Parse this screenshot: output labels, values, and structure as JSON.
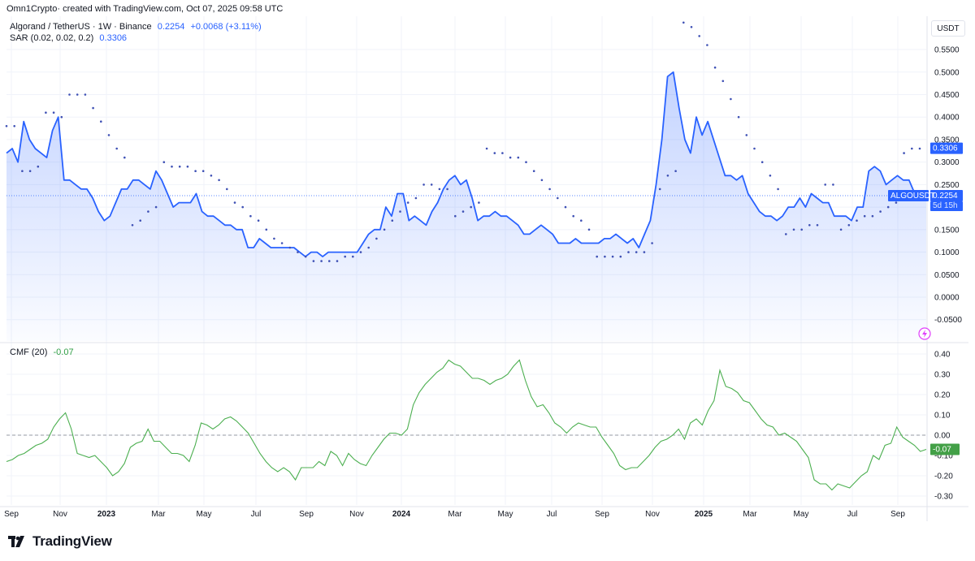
{
  "header": {
    "credit": "Omn1Crypto· created with TradingView.com, Oct 07, 2025 09:58 UTC"
  },
  "legend": {
    "symbol": "Algorand / TetherUS · 1W · Binance",
    "price": "0.2254",
    "change": "+0.0068 (+3.11%)",
    "sar_label": "SAR (0.02, 0.02, 0.2)",
    "sar_value": "0.3306",
    "cmf_label": "CMF (20)",
    "cmf_value": "-0.07"
  },
  "currency_box": "USDT",
  "price_labels": {
    "sar_tag": "0.3306",
    "symbol_tag": "ALGOUSDT",
    "price_tag": "0.2254",
    "countdown": "5d 15h",
    "cmf_tag": "-0.07"
  },
  "brand": {
    "logo_text": "TradingView"
  },
  "colors": {
    "price_line": "#2962ff",
    "sar_dots": "#3f51b5",
    "cmf_line": "#4caf50",
    "cmf_tag": "#43a047",
    "grid": "#f0f3fa"
  },
  "chart_data": [
    {
      "type": "area",
      "title": "Algorand / TetherUS · 1W · Binance",
      "ylabel": "USDT",
      "ylim": [
        -0.075,
        0.6
      ],
      "y_ticks": [
        "0.5500",
        "0.5000",
        "0.4500",
        "0.4000",
        "0.3500",
        "0.3000",
        "0.2500",
        "0.2000",
        "0.1500",
        "0.1000",
        "0.0500",
        "0.0000",
        "-0.0500"
      ],
      "x_ticks": [
        "Sep",
        "Nov",
        "2023",
        "Mar",
        "May",
        "Jul",
        "Sep",
        "Nov",
        "2024",
        "Mar",
        "May",
        "Jul",
        "Sep",
        "Nov",
        "2025",
        "Mar",
        "May",
        "Jul",
        "Sep"
      ],
      "series": [
        {
          "name": "ALGOUSDT",
          "values": [
            0.32,
            0.33,
            0.3,
            0.39,
            0.35,
            0.33,
            0.32,
            0.31,
            0.37,
            0.4,
            0.26,
            0.26,
            0.25,
            0.24,
            0.24,
            0.22,
            0.19,
            0.17,
            0.18,
            0.21,
            0.24,
            0.24,
            0.26,
            0.26,
            0.25,
            0.24,
            0.28,
            0.26,
            0.23,
            0.2,
            0.21,
            0.21,
            0.21,
            0.23,
            0.19,
            0.18,
            0.18,
            0.17,
            0.16,
            0.16,
            0.15,
            0.15,
            0.11,
            0.11,
            0.13,
            0.12,
            0.11,
            0.11,
            0.11,
            0.11,
            0.11,
            0.1,
            0.09,
            0.1,
            0.1,
            0.09,
            0.1,
            0.1,
            0.1,
            0.1,
            0.1,
            0.1,
            0.12,
            0.14,
            0.15,
            0.15,
            0.2,
            0.18,
            0.23,
            0.23,
            0.17,
            0.18,
            0.17,
            0.16,
            0.19,
            0.21,
            0.24,
            0.26,
            0.27,
            0.25,
            0.26,
            0.22,
            0.17,
            0.18,
            0.18,
            0.19,
            0.18,
            0.18,
            0.17,
            0.16,
            0.14,
            0.14,
            0.15,
            0.16,
            0.15,
            0.14,
            0.12,
            0.12,
            0.12,
            0.13,
            0.12,
            0.12,
            0.12,
            0.12,
            0.13,
            0.13,
            0.14,
            0.13,
            0.12,
            0.13,
            0.11,
            0.14,
            0.17,
            0.25,
            0.35,
            0.49,
            0.5,
            0.42,
            0.35,
            0.32,
            0.4,
            0.36,
            0.39,
            0.35,
            0.31,
            0.27,
            0.27,
            0.26,
            0.27,
            0.23,
            0.21,
            0.19,
            0.18,
            0.18,
            0.17,
            0.18,
            0.2,
            0.2,
            0.22,
            0.2,
            0.23,
            0.22,
            0.21,
            0.21,
            0.18,
            0.18,
            0.18,
            0.17,
            0.2,
            0.2,
            0.28,
            0.29,
            0.28,
            0.25,
            0.26,
            0.27,
            0.26,
            0.26,
            0.23,
            0.23,
            0.23
          ]
        },
        {
          "name": "SAR",
          "values": [
            0.38,
            0.38,
            0.28,
            0.28,
            0.29,
            0.41,
            0.41,
            0.4,
            0.45,
            0.45,
            0.45,
            0.42,
            0.39,
            0.36,
            0.33,
            0.31,
            0.16,
            0.17,
            0.19,
            0.2,
            0.3,
            0.29,
            0.29,
            0.29,
            0.28,
            0.28,
            0.27,
            0.26,
            0.24,
            0.21,
            0.2,
            0.18,
            0.17,
            0.15,
            0.13,
            0.12,
            0.11,
            0.1,
            0.09,
            0.08,
            0.08,
            0.08,
            0.08,
            0.09,
            0.09,
            0.1,
            0.11,
            0.13,
            0.15,
            0.17,
            0.19,
            0.21,
            0.22,
            0.25,
            0.25,
            0.24,
            0.24,
            0.18,
            0.19,
            0.2,
            0.21,
            0.33,
            0.32,
            0.32,
            0.31,
            0.31,
            0.3,
            0.28,
            0.26,
            0.24,
            0.22,
            0.2,
            0.18,
            0.17,
            0.15,
            0.09,
            0.09,
            0.09,
            0.09,
            0.1,
            0.1,
            0.1,
            0.12,
            0.24,
            0.27,
            0.28,
            0.61,
            0.6,
            0.58,
            0.56,
            0.51,
            0.48,
            0.44,
            0.4,
            0.36,
            0.33,
            0.3,
            0.27,
            0.24,
            0.14,
            0.15,
            0.15,
            0.16,
            0.16,
            0.25,
            0.25,
            0.15,
            0.16,
            0.17,
            0.18,
            0.18,
            0.19,
            0.2,
            0.21,
            0.32,
            0.33,
            0.33
          ]
        }
      ]
    },
    {
      "type": "line",
      "title": "CMF (20)",
      "ylim": [
        -0.35,
        0.43
      ],
      "y_ticks": [
        "0.40",
        "0.30",
        "0.20",
        "0.10",
        "0.00",
        "-0.10",
        "-0.20",
        "-0.30"
      ],
      "series": [
        {
          "name": "CMF (20)",
          "values": [
            -0.13,
            -0.12,
            -0.1,
            -0.09,
            -0.07,
            -0.05,
            -0.04,
            -0.02,
            0.04,
            0.08,
            0.11,
            0.03,
            -0.09,
            -0.1,
            -0.11,
            -0.1,
            -0.13,
            -0.16,
            -0.2,
            -0.18,
            -0.14,
            -0.06,
            -0.04,
            -0.03,
            0.03,
            -0.03,
            -0.03,
            -0.06,
            -0.09,
            -0.09,
            -0.1,
            -0.13,
            -0.05,
            0.06,
            0.05,
            0.03,
            0.05,
            0.08,
            0.09,
            0.07,
            0.04,
            0.01,
            -0.04,
            -0.09,
            -0.13,
            -0.16,
            -0.18,
            -0.16,
            -0.18,
            -0.22,
            -0.16,
            -0.16,
            -0.16,
            -0.13,
            -0.15,
            -0.08,
            -0.1,
            -0.15,
            -0.09,
            -0.12,
            -0.14,
            -0.15,
            -0.1,
            -0.06,
            -0.02,
            0.01,
            0.01,
            0.0,
            0.03,
            0.15,
            0.21,
            0.25,
            0.28,
            0.31,
            0.33,
            0.37,
            0.35,
            0.34,
            0.31,
            0.28,
            0.28,
            0.27,
            0.25,
            0.27,
            0.28,
            0.3,
            0.34,
            0.37,
            0.27,
            0.19,
            0.14,
            0.15,
            0.11,
            0.06,
            0.04,
            0.01,
            0.04,
            0.06,
            0.05,
            0.04,
            0.04,
            -0.01,
            -0.05,
            -0.09,
            -0.15,
            -0.17,
            -0.16,
            -0.16,
            -0.13,
            -0.1,
            -0.06,
            -0.03,
            -0.02,
            0.0,
            0.03,
            -0.02,
            0.06,
            0.08,
            0.05,
            0.12,
            0.17,
            0.32,
            0.24,
            0.23,
            0.21,
            0.17,
            0.16,
            0.12,
            0.08,
            0.05,
            0.04,
            0.0,
            0.01,
            -0.01,
            -0.03,
            -0.07,
            -0.11,
            -0.22,
            -0.24,
            -0.24,
            -0.27,
            -0.24,
            -0.25,
            -0.26,
            -0.23,
            -0.2,
            -0.18,
            -0.1,
            -0.12,
            -0.05,
            -0.04,
            0.04,
            -0.01,
            -0.03,
            -0.05,
            -0.08,
            -0.07
          ]
        }
      ]
    }
  ]
}
